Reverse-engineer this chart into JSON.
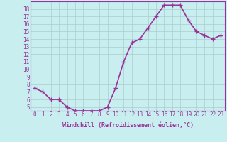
{
  "x": [
    0,
    1,
    2,
    3,
    4,
    5,
    6,
    7,
    8,
    9,
    10,
    11,
    12,
    13,
    14,
    15,
    16,
    17,
    18,
    19,
    20,
    21,
    22,
    23
  ],
  "y": [
    7.5,
    7.0,
    6.0,
    6.0,
    5.0,
    4.5,
    4.5,
    4.5,
    4.5,
    5.0,
    7.5,
    11.0,
    13.5,
    14.0,
    15.5,
    17.0,
    18.5,
    18.5,
    18.5,
    16.5,
    15.0,
    14.5,
    14.0,
    14.5
  ],
  "line_color": "#993399",
  "marker": "+",
  "marker_size": 4,
  "background_color": "#c8eef0",
  "grid_color": "#aacccc",
  "xlabel": "Windchill (Refroidissement éolien,°C)",
  "xlabel_color": "#993399",
  "tick_color": "#993399",
  "xlim": [
    -0.5,
    23.5
  ],
  "ylim": [
    4.5,
    19.0
  ],
  "yticks": [
    5,
    6,
    7,
    8,
    9,
    10,
    11,
    12,
    13,
    14,
    15,
    16,
    17,
    18
  ],
  "xticks": [
    0,
    1,
    2,
    3,
    4,
    5,
    6,
    7,
    8,
    9,
    10,
    11,
    12,
    13,
    14,
    15,
    16,
    17,
    18,
    19,
    20,
    21,
    22,
    23
  ],
  "axis_color": "#993399",
  "line_width": 1.2,
  "tick_fontsize": 5.5,
  "xlabel_fontsize": 6.0
}
